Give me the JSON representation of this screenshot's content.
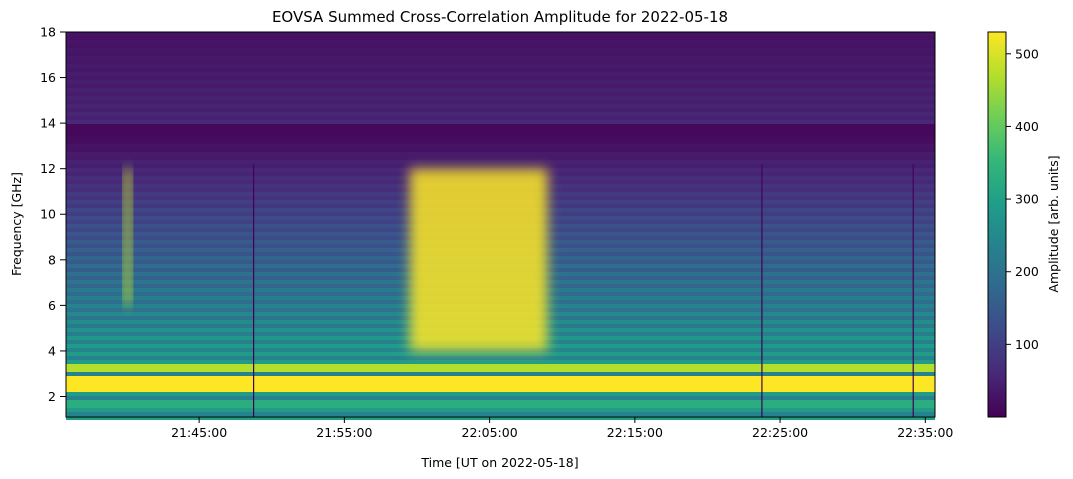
{
  "chart_data": {
    "type": "heatmap",
    "title": "EOVSA Summed Cross-Correlation Amplitude for 2022-05-18",
    "xlabel": "Time [UT on 2022-05-18]",
    "ylabel": "Frequency [GHz]",
    "x_range": [
      "21:35:50",
      "22:35:40"
    ],
    "x_ticks": [
      "21:45:00",
      "21:55:00",
      "22:05:00",
      "22:15:00",
      "22:25:00",
      "22:35:00"
    ],
    "ylim": [
      1.1,
      18
    ],
    "y_ticks": [
      2,
      4,
      6,
      8,
      10,
      12,
      14,
      16,
      18
    ],
    "colormap": "viridis",
    "colorbar": {
      "label": "Amplitude [arb. units]",
      "range": [
        0,
        530
      ],
      "ticks": [
        100,
        200,
        300,
        400,
        500
      ]
    },
    "features": [
      {
        "description": "bright continuous band",
        "freq_range_ghz": [
          2.2,
          3.0
        ],
        "amplitude": 530
      },
      {
        "description": "narrow burst",
        "time": "21:40:05",
        "freq_range_ghz": [
          6,
          12
        ],
        "peak_amplitude": 480
      },
      {
        "description": "strong burst",
        "time_range": [
          "21:59:30",
          "22:09:00"
        ],
        "freq_range_ghz": [
          4,
          12
        ],
        "peak_amplitude": 530
      },
      {
        "description": "vertical dropout lines",
        "times": [
          "21:48:45",
          "22:23:45",
          "22:34:10"
        ]
      }
    ]
  },
  "colors": {
    "viridis": [
      "#440154",
      "#482878",
      "#3e4989",
      "#31688e",
      "#26828e",
      "#1f9e89",
      "#35b779",
      "#6ece58",
      "#b5de2b",
      "#fde725"
    ]
  }
}
